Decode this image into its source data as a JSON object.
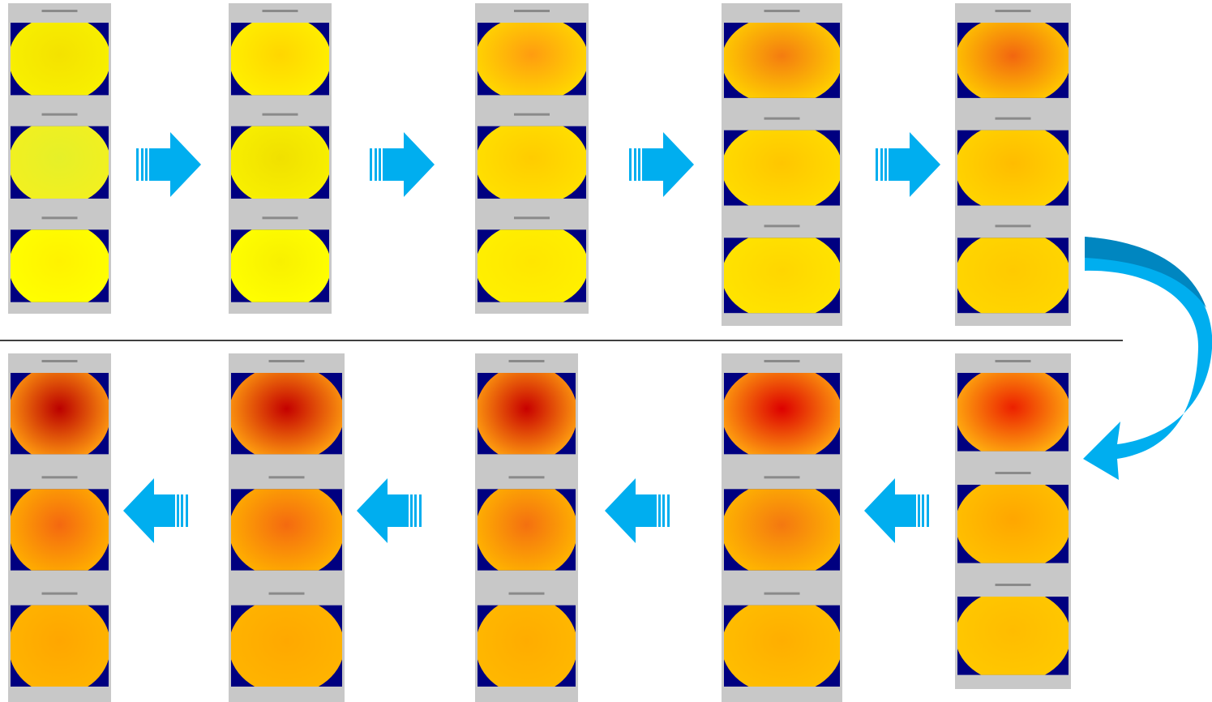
{
  "rows": [
    {
      "direction": "right",
      "panels": [
        {
          "maps": [
            {
              "base": "#f8f000",
              "center": "#f4e200"
            },
            {
              "base": "#f2f020",
              "center": "#e6f028"
            },
            {
              "base": "#ffff00",
              "center": "#fff200"
            }
          ]
        },
        {
          "maps": [
            {
              "base": "#fff000",
              "center": "#ffd600"
            },
            {
              "base": "#f8f000",
              "center": "#f0e000"
            },
            {
              "base": "#ffff00",
              "center": "#f8f000"
            }
          ]
        },
        {
          "maps": [
            {
              "base": "#ffd800",
              "center": "#ff9c10"
            },
            {
              "base": "#ffe000",
              "center": "#ffcc00"
            },
            {
              "base": "#fff000",
              "center": "#ffe600"
            }
          ]
        },
        {
          "maps": [
            {
              "base": "#ffd000",
              "center": "#f47c10"
            },
            {
              "base": "#ffdc00",
              "center": "#ffc600"
            },
            {
              "base": "#ffe400",
              "center": "#ffd600"
            }
          ]
        },
        {
          "maps": [
            {
              "base": "#ffc800",
              "center": "#f26610"
            },
            {
              "base": "#ffd400",
              "center": "#ffbc00"
            },
            {
              "base": "#ffd600",
              "center": "#ffca00"
            }
          ]
        }
      ]
    },
    {
      "direction": "left",
      "panels": [
        {
          "maps": [
            {
              "base": "#ff9c10",
              "center": "#bb0000"
            },
            {
              "base": "#ffae00",
              "center": "#f46810"
            },
            {
              "base": "#ffb400",
              "center": "#ffa600"
            }
          ]
        },
        {
          "maps": [
            {
              "base": "#ffa010",
              "center": "#c40000"
            },
            {
              "base": "#ffb000",
              "center": "#f46a10"
            },
            {
              "base": "#ffb400",
              "center": "#ffa800"
            }
          ]
        },
        {
          "maps": [
            {
              "base": "#ffa010",
              "center": "#c80000"
            },
            {
              "base": "#ffb400",
              "center": "#f47010"
            },
            {
              "base": "#ffb800",
              "center": "#ffac00"
            }
          ]
        },
        {
          "maps": [
            {
              "base": "#ffa410",
              "center": "#dd0000"
            },
            {
              "base": "#ffb800",
              "center": "#f47810"
            },
            {
              "base": "#ffbe00",
              "center": "#ffae00"
            }
          ]
        },
        {
          "maps": [
            {
              "base": "#ffb010",
              "center": "#ec2000"
            },
            {
              "base": "#ffc000",
              "center": "#ffa600"
            },
            {
              "base": "#ffc800",
              "center": "#ffbc00"
            }
          ]
        }
      ]
    }
  ]
}
